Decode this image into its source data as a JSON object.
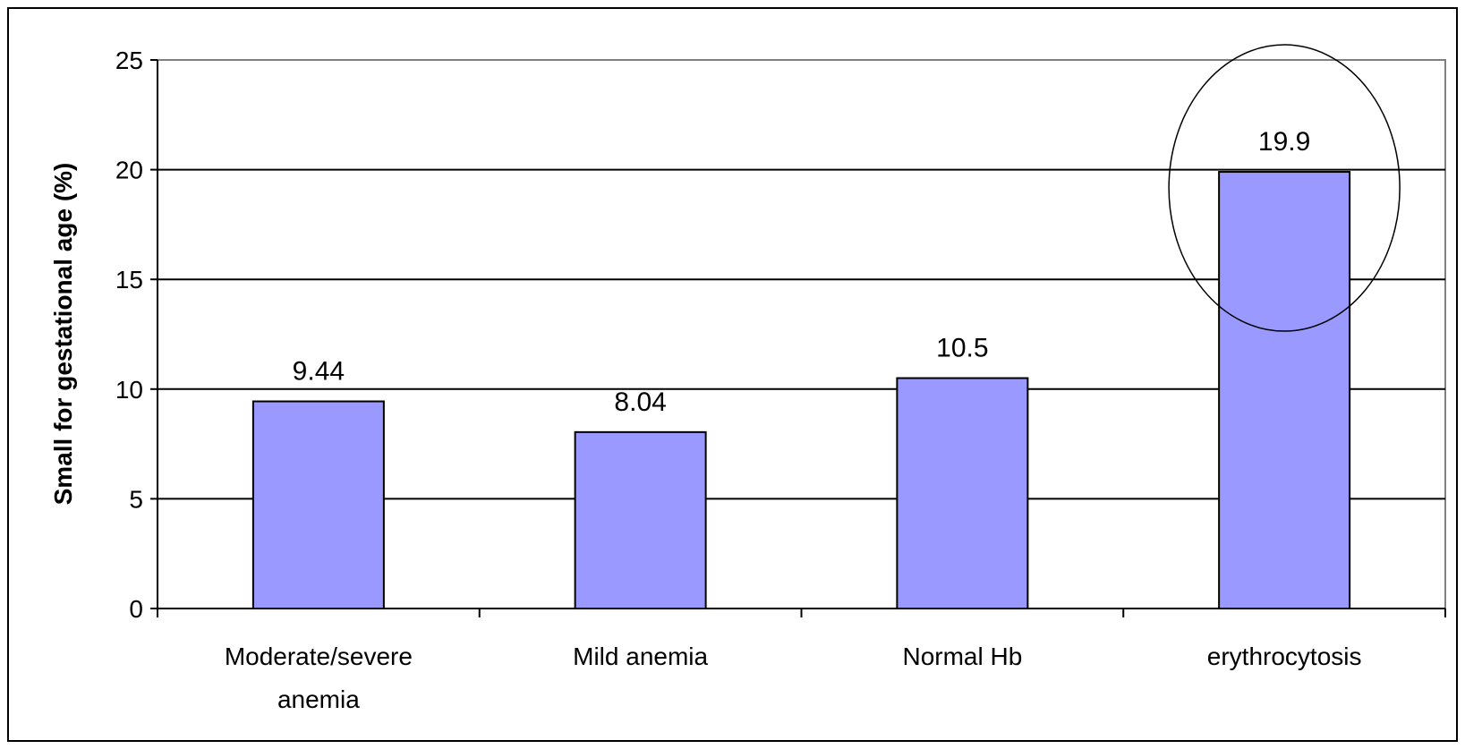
{
  "chart_data": {
    "type": "bar",
    "title": "",
    "xlabel": "",
    "ylabel": "Small for gestational age (%)",
    "categories": [
      [
        "Moderate/severe",
        "anemia"
      ],
      [
        "Mild anemia"
      ],
      [
        "Normal Hb"
      ],
      [
        "erythrocytosis"
      ]
    ],
    "values": [
      9.44,
      8.04,
      10.5,
      19.9
    ],
    "data_labels": [
      "9.44",
      "8.04",
      "10.5",
      "19.9"
    ],
    "ylim": [
      0,
      25
    ],
    "yticks": [
      0,
      5,
      10,
      15,
      20,
      25
    ],
    "grid": true,
    "legend": "none",
    "bar_color": "#9999ff",
    "highlight": "erythrocytosis"
  }
}
